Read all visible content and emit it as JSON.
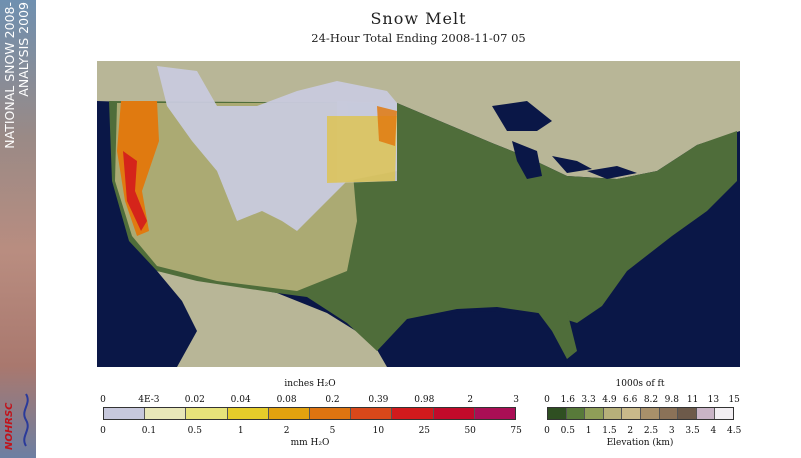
{
  "sidebar": {
    "line1": "NATIONAL SNOW 2008-",
    "line2": "ANALYSIS 2009",
    "logo_text": "NOHRSC"
  },
  "header": {
    "title": "Snow Melt",
    "subtitle": "24-Hour Total Ending 2008-11-07 05"
  },
  "map": {
    "background_ocean": "#0a1747",
    "canada_color": "#b8b697",
    "lowland_color": "#4f6d3a",
    "snow_color": "#c8cadd",
    "melt_colors": [
      "#e8e3a0",
      "#e6c21c",
      "#e07a10",
      "#d5241a",
      "#b80a2c"
    ]
  },
  "melt_legend": {
    "top_unit": "inches H₂O",
    "top_labels": [
      "0",
      "4E-3",
      "0.02",
      "0.04",
      "0.08",
      "0.2",
      "0.39",
      "0.98",
      "2",
      "3"
    ],
    "bottom_labels": [
      "0",
      "0.1",
      "0.5",
      "1",
      "2",
      "5",
      "10",
      "25",
      "50",
      "75"
    ],
    "bottom_unit": "mm H₂O",
    "colors": [
      "#c7c8dc",
      "#e8e7b8",
      "#e7e37a",
      "#e6cd2a",
      "#e2a20e",
      "#de7410",
      "#d9481a",
      "#d11a1c",
      "#c20a2a",
      "#aa0e55"
    ]
  },
  "elevation_legend": {
    "top_unit": "1000s of ft",
    "top_labels": [
      "0",
      "1.6",
      "3.3",
      "4.9",
      "6.6",
      "8.2",
      "9.8",
      "11",
      "13",
      "15"
    ],
    "bottom_labels": [
      "0",
      "0.5",
      "1",
      "1.5",
      "2",
      "2.5",
      "3",
      "3.5",
      "4",
      "4.5"
    ],
    "bottom_unit": "Elevation (km)",
    "colors": [
      "#2f4f22",
      "#587a3a",
      "#8f9e58",
      "#b7b07a",
      "#c9b98a",
      "#a8906a",
      "#8b7258",
      "#6d5a4a",
      "#c9b4c6",
      "#f2eef2"
    ]
  }
}
